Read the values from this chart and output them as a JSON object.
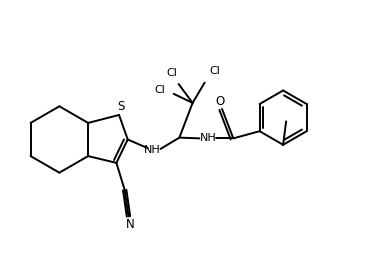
{
  "background": "#ffffff",
  "line_color": "#000000",
  "line_width": 1.4,
  "figsize": [
    3.79,
    2.59
  ],
  "dpi": 100,
  "xlim": [
    0,
    10
  ],
  "ylim": [
    0,
    6.83
  ]
}
